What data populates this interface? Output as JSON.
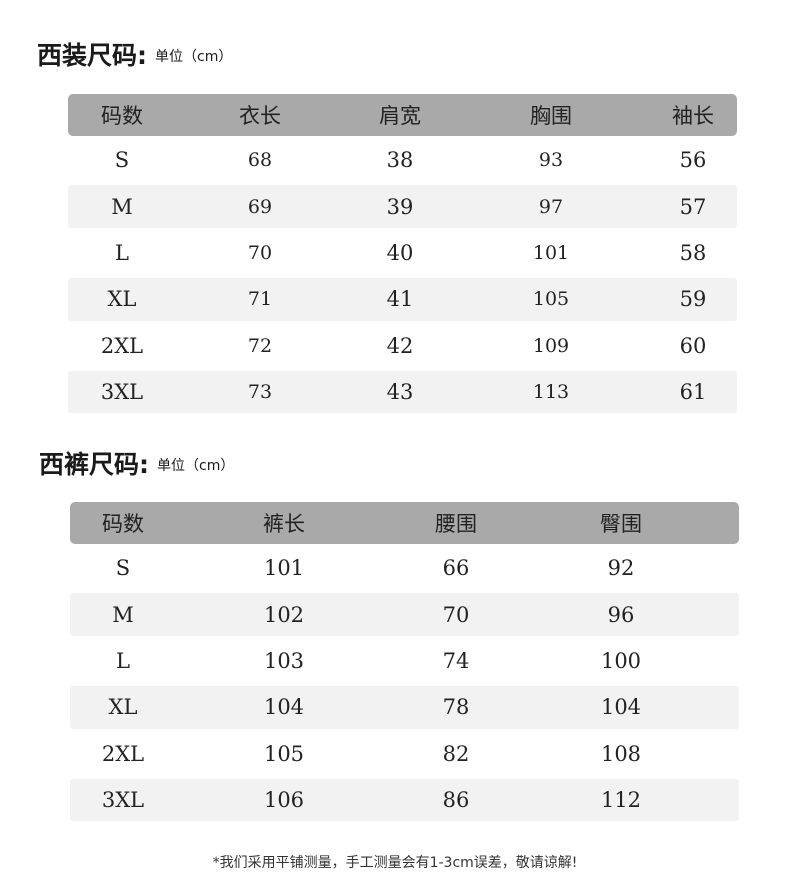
{
  "suit": {
    "title": "西装尺码:",
    "unit": "单位（cm）",
    "headers": [
      "码数",
      "衣长",
      "肩宽",
      "胸围",
      "袖长"
    ],
    "rows": [
      [
        "S",
        "68",
        "38",
        "93",
        "56"
      ],
      [
        "M",
        "69",
        "39",
        "97",
        "57"
      ],
      [
        "L",
        "70",
        "40",
        "101",
        "58"
      ],
      [
        "XL",
        "71",
        "41",
        "105",
        "59"
      ],
      [
        "2XL",
        "72",
        "42",
        "109",
        "60"
      ],
      [
        "3XL",
        "73",
        "43",
        "113",
        "61"
      ]
    ]
  },
  "pants": {
    "title": "西裤尺码:",
    "unit": "单位（cm）",
    "headers": [
      "码数",
      "裤长",
      "腰围",
      "臀围"
    ],
    "rows": [
      [
        "S",
        "101",
        "66",
        "92"
      ],
      [
        "M",
        "102",
        "70",
        "96"
      ],
      [
        "L",
        "103",
        "74",
        "100"
      ],
      [
        "XL",
        "104",
        "78",
        "104"
      ],
      [
        "2XL",
        "105",
        "82",
        "108"
      ],
      [
        "3XL",
        "106",
        "86",
        "112"
      ]
    ]
  },
  "note": "*我们采用平铺测量，手工测量会有1-3cm误差，敬请谅解!",
  "colors": {
    "header_bg": "#a9a9a9",
    "stripe_bg": "#f2f2f2"
  }
}
